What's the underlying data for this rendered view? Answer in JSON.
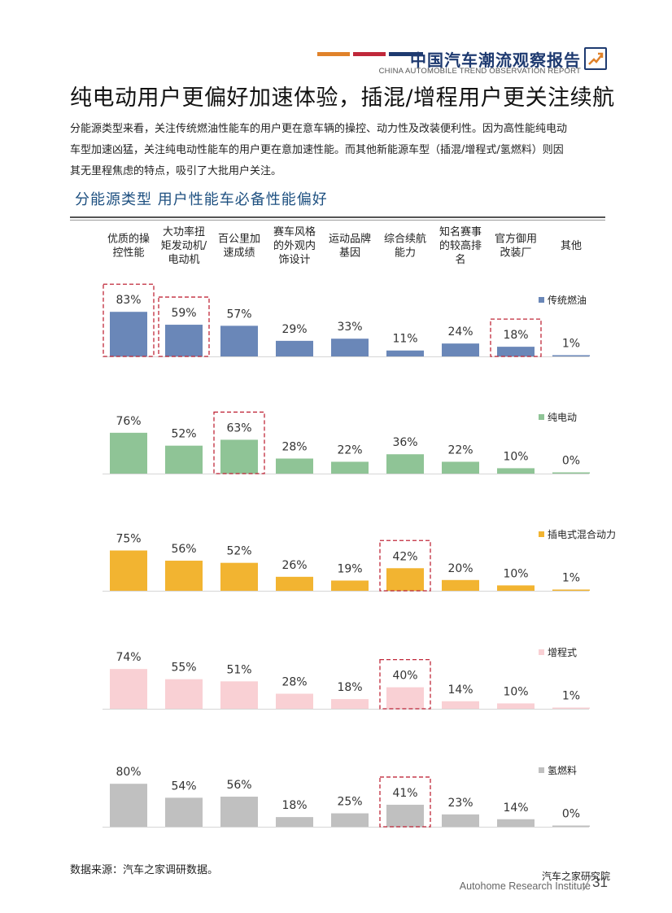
{
  "header": {
    "report_title": "中国汽车潮流观察报告",
    "report_subtitle": "CHINA AUTOMOBILE TREND OBSERVATION REPORT",
    "accent_colors": [
      "#e0822a",
      "#c0283a",
      "#1e3a70"
    ]
  },
  "headline": "纯电动用户更偏好加速体验，插混/增程用户更关注续航",
  "description": [
    "分能源类型来看，关注传统燃油性能车的用户更在意车辆的操控、动力性及改装便利性。因为高性能纯电动",
    "车型加速凶猛，关注纯电动性能车的用户更在意加速性能。而其他新能源车型（插混/增程式/氢燃料）则因",
    "其无里程焦虑的特点，吸引了大批用户关注。"
  ],
  "subheading": "分能源类型  用户性能车必备性能偏好",
  "chart_data": {
    "type": "bar",
    "layout": "small-multiples",
    "categories": [
      [
        "优质的操",
        "控性能"
      ],
      [
        "大功率扭",
        "矩发动机/",
        "电动机"
      ],
      [
        "百公里加",
        "速成绩"
      ],
      [
        "赛车风格",
        "的外观内",
        "饰设计"
      ],
      [
        "运动品牌",
        "基因"
      ],
      [
        "综合续航",
        "能力"
      ],
      [
        "知名赛事",
        "的较高排",
        "名"
      ],
      [
        "官方御用",
        "改装厂"
      ],
      [
        "其他"
      ]
    ],
    "series": [
      {
        "name": "传统燃油",
        "color": "#6a87b8",
        "values": [
          83,
          59,
          57,
          29,
          33,
          11,
          24,
          18,
          1
        ],
        "highlighted": [
          0,
          1,
          7
        ]
      },
      {
        "name": "纯电动",
        "color": "#8fc496",
        "values": [
          76,
          52,
          63,
          28,
          22,
          36,
          22,
          10,
          0
        ],
        "highlighted": [
          2
        ]
      },
      {
        "name": "插电式混合动力",
        "color": "#f2b431",
        "values": [
          75,
          56,
          52,
          26,
          19,
          42,
          20,
          10,
          1
        ],
        "highlighted": [
          5
        ]
      },
      {
        "name": "增程式",
        "color": "#f9d0d4",
        "values": [
          74,
          55,
          51,
          28,
          18,
          40,
          14,
          10,
          1
        ],
        "highlighted": [
          5
        ]
      },
      {
        "name": "氢燃料",
        "color": "#c0c0c0",
        "values": [
          80,
          54,
          56,
          18,
          25,
          41,
          23,
          14,
          0
        ],
        "highlighted": [
          5
        ]
      }
    ],
    "value_suffix": "%",
    "highlight_color": "#c0283a"
  },
  "footer": {
    "source": "数据来源：汽车之家调研数据。",
    "institute_cn": "汽车之家研究院",
    "institute_en": "Autohome Research Institute",
    "page_number": "31"
  }
}
